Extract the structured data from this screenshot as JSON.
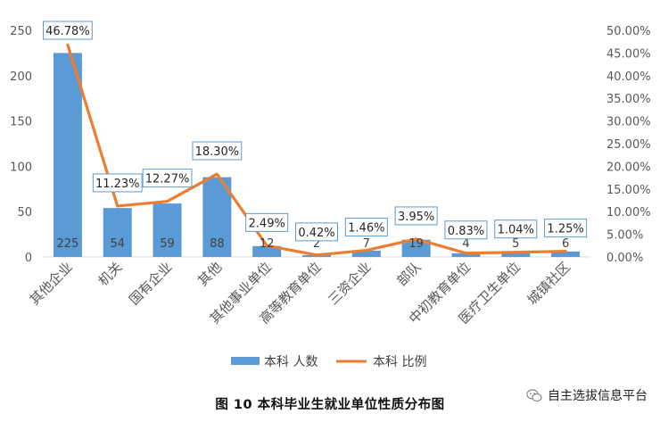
{
  "chart_data": {
    "type": "bar+line",
    "categories": [
      "其他企业",
      "机关",
      "国有企业",
      "其他",
      "其他事业单位",
      "高等教育单位",
      "三资企业",
      "部队",
      "中初教育单位",
      "医疗卫生单位",
      "城镇社区"
    ],
    "series": [
      {
        "name": "本科 人数",
        "type": "bar",
        "axis": "left",
        "color": "#5b9bd5",
        "values": [
          225,
          54,
          59,
          88,
          12,
          2,
          7,
          19,
          4,
          5,
          6
        ]
      },
      {
        "name": "本科 比例",
        "type": "line",
        "axis": "right",
        "color": "#ed7d31",
        "values": [
          46.78,
          11.23,
          12.27,
          18.3,
          2.49,
          0.42,
          1.46,
          3.95,
          0.83,
          1.04,
          1.25
        ],
        "labels": [
          "46.78%",
          "11.23%",
          "12.27%",
          "18.30%",
          "2.49%",
          "0.42%",
          "1.46%",
          "3.95%",
          "0.83%",
          "1.04%",
          "1.25%"
        ]
      }
    ],
    "y_left": {
      "ylim": [
        0,
        250
      ],
      "ticks": [
        "0",
        "50",
        "100",
        "150",
        "200",
        "250"
      ]
    },
    "y_right": {
      "ylim": [
        0,
        50
      ],
      "ticks": [
        "0.00%",
        "5.00%",
        "10.00%",
        "15.00%",
        "20.00%",
        "25.00%",
        "30.00%",
        "35.00%",
        "40.00%",
        "45.00%",
        "50.00%"
      ]
    },
    "grid": false,
    "legend_position": "bottom"
  },
  "caption": "图  10  本科毕业生就业单位性质分布图",
  "watermark": "自主选拔信息平台"
}
